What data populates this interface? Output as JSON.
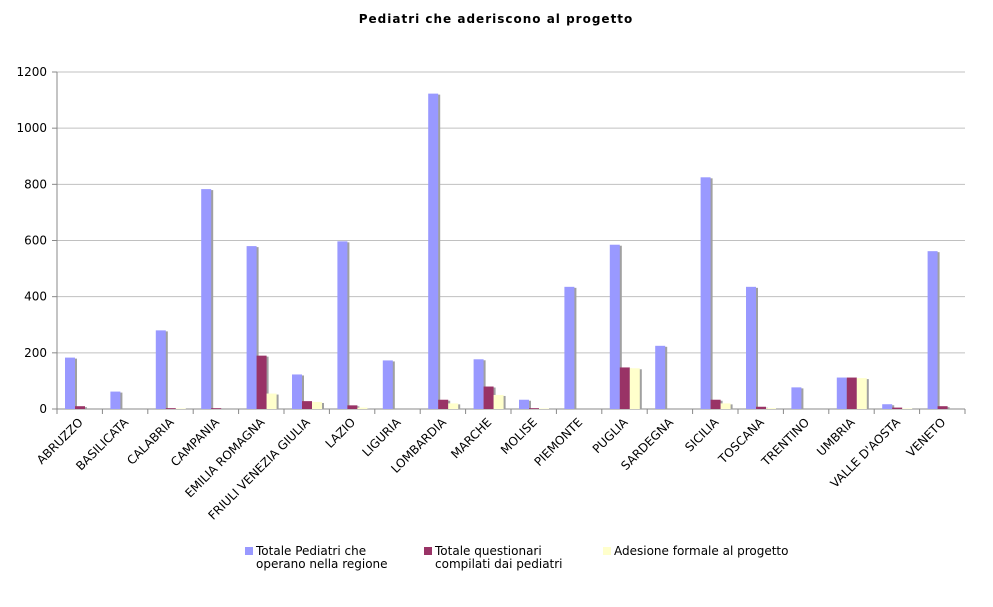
{
  "chart_data": {
    "type": "bar",
    "title": "Pediatri che aderiscono al progetto",
    "categories": [
      "ABRUZZO",
      "BASILICATA",
      "CALABRIA",
      "CAMPANIA",
      "EMILIA ROMAGNA",
      "FRIULI VENEZIA GIULIA",
      "LAZIO",
      "LIGURIA",
      "LOMBARDIA",
      "MARCHE",
      "MOLISE",
      "PIEMONTE",
      "PUGLIA",
      "SARDEGNA",
      "SICILIA",
      "TOSCANA",
      "TRENTINO",
      "UMBRIA",
      "VALLE D'AOSTA",
      "VENETO"
    ],
    "series": [
      {
        "name": "Totale  Pediatri che operano nella regione",
        "color": "#9999ff",
        "values": [
          183,
          62,
          280,
          783,
          580,
          123,
          597,
          173,
          1123,
          177,
          33,
          435,
          585,
          225,
          825,
          435,
          77,
          112,
          17,
          562
        ]
      },
      {
        "name": "Totale questionari compilati dai pediatri",
        "color": "#993366",
        "values": [
          10,
          0,
          3,
          3,
          190,
          28,
          13,
          0,
          33,
          80,
          3,
          0,
          148,
          0,
          33,
          8,
          0,
          112,
          5,
          10
        ]
      },
      {
        "name": "Adesione formale al progetto",
        "color": "#ffffcc",
        "values": [
          0,
          0,
          2,
          0,
          55,
          25,
          5,
          0,
          20,
          50,
          2,
          0,
          145,
          0,
          20,
          3,
          0,
          110,
          2,
          0
        ]
      }
    ],
    "ylim": [
      0,
      1200
    ],
    "yticks": [
      0,
      200,
      400,
      600,
      800,
      1000,
      1200
    ],
    "grid": true,
    "legend": "bottom"
  }
}
